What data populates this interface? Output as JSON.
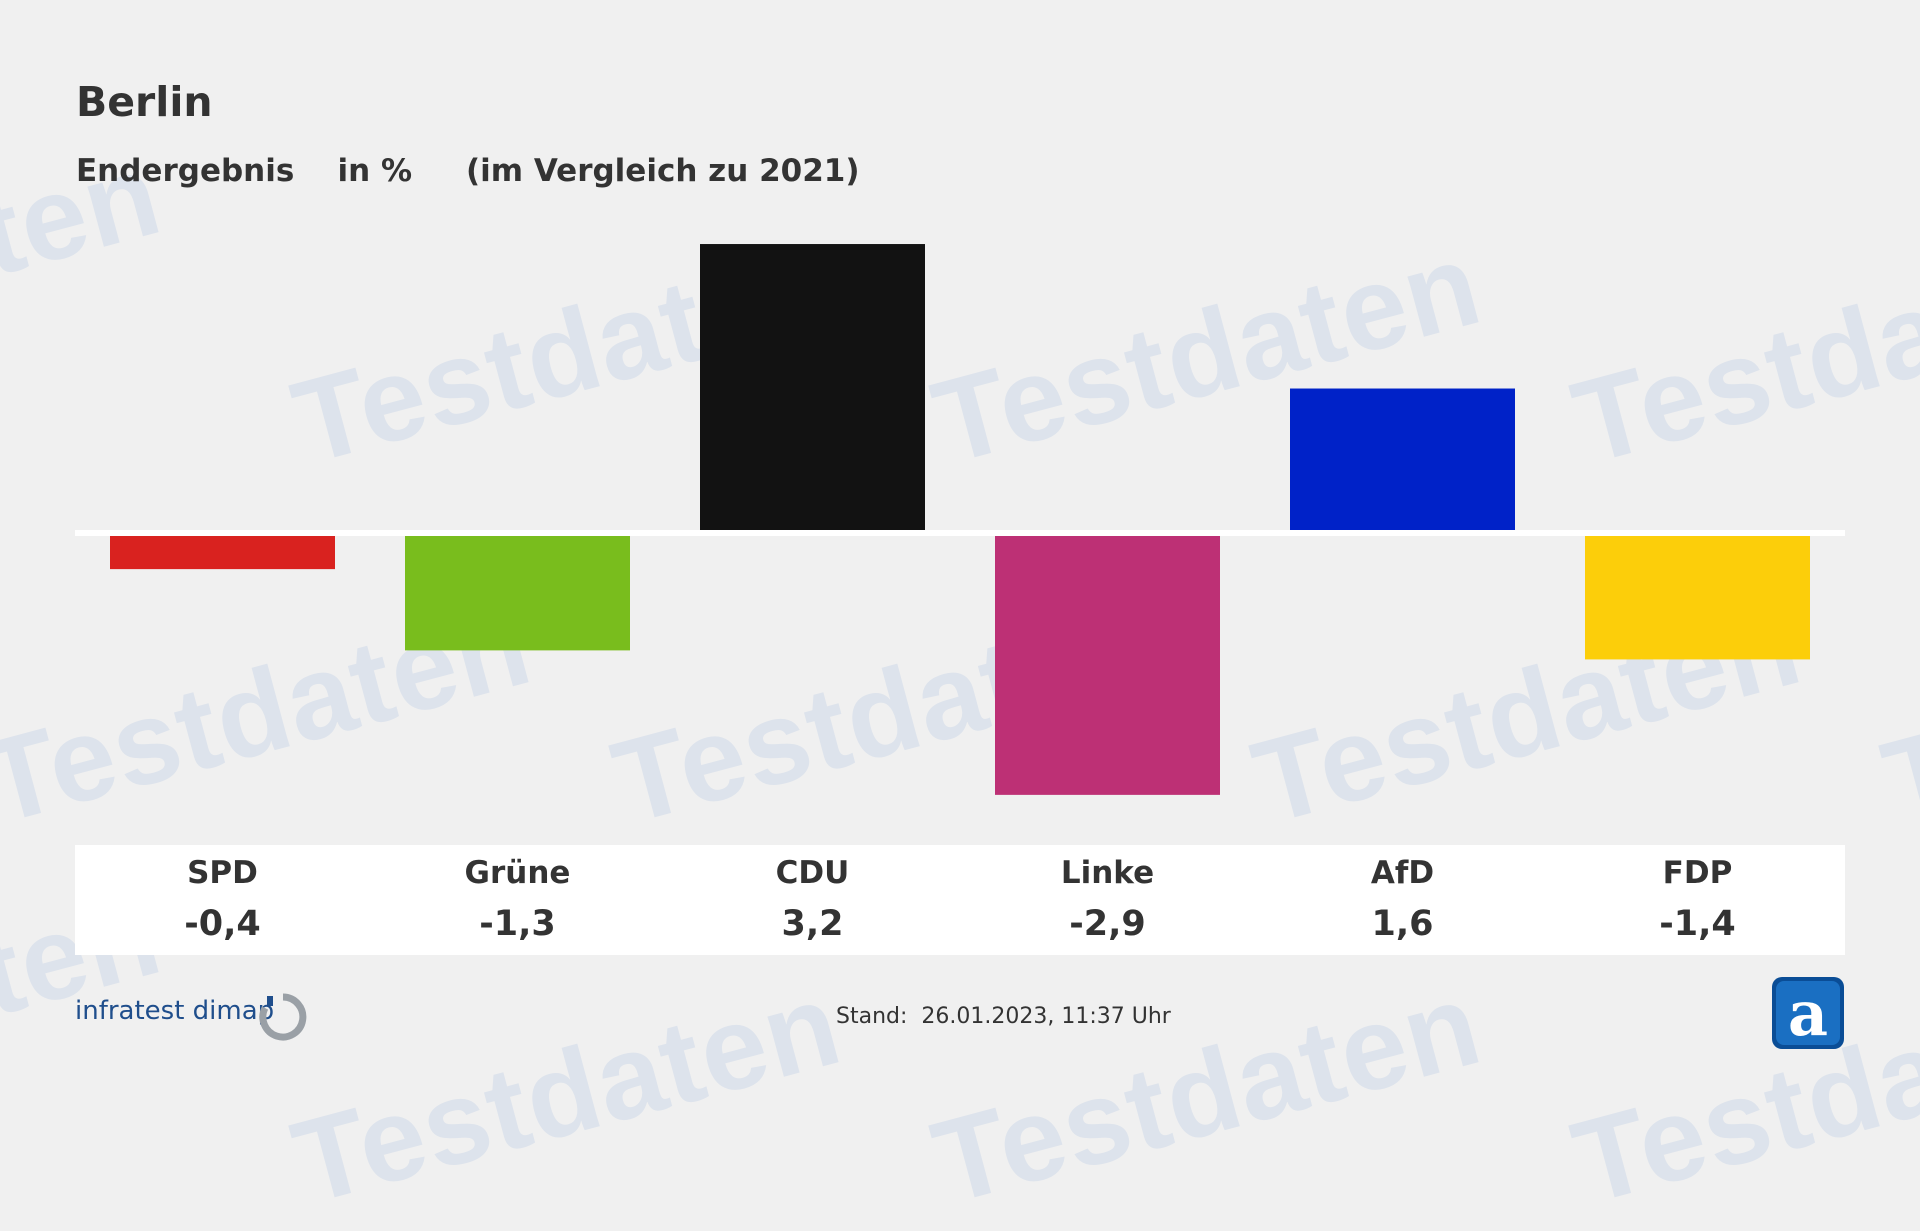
{
  "header": {
    "title": "Berlin",
    "subtitle": "Endergebnis    in %     (im Vergleich zu 2021)"
  },
  "watermark": {
    "text": "Testdaten"
  },
  "footer": {
    "brand": "infratest dimap",
    "stand": "Stand:  26.01.2023, 11:37 Uhr"
  },
  "colors": {
    "background": "#f0f0f0",
    "baseline": "#ffffff",
    "SPD": "#d9221f",
    "Grüne": "#79bd1d",
    "CDU": "#121212",
    "Linke": "#bd3075",
    "AfD": "#0022c8",
    "FDP": "#fcce0a"
  },
  "icons": {
    "brand": "infratest-dimap-logo-icon",
    "app": "a-app-icon"
  },
  "chart_data": {
    "type": "bar",
    "categories": [
      "SPD",
      "Grüne",
      "CDU",
      "Linke",
      "AfD",
      "FDP"
    ],
    "values": [
      -0.4,
      -1.3,
      3.2,
      -2.9,
      1.6,
      -1.4
    ],
    "value_labels": [
      "-0,4",
      "-1,3",
      "3,2",
      "-2,9",
      "1,6",
      "-1,4"
    ],
    "colors": [
      "#d9221f",
      "#79bd1d",
      "#121212",
      "#bd3075",
      "#0022c8",
      "#fcce0a"
    ],
    "title": "Berlin",
    "subtitle": "Endergebnis in % (im Vergleich zu 2021)",
    "grid": false,
    "legend": "none"
  }
}
